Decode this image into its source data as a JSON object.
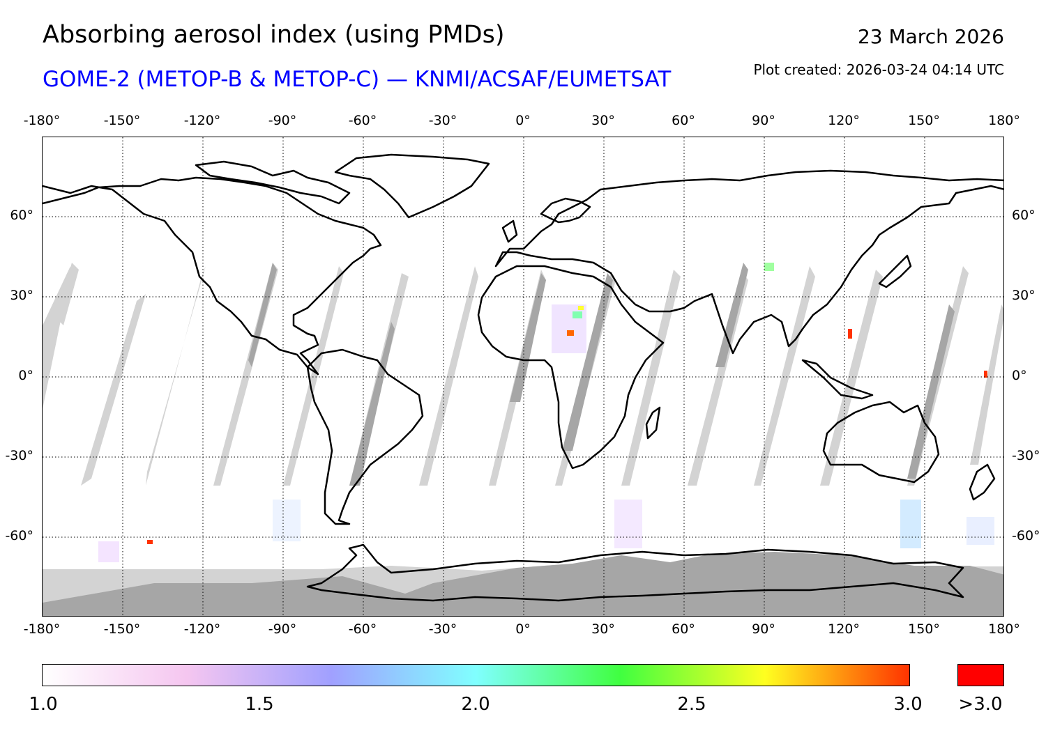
{
  "header": {
    "title": "Absorbing aerosol index (using PMDs)",
    "subtitle": "GOME-2 (METOP-B & METOP-C) — KNMI/ACSAF/EUMETSAT",
    "date": "23 March 2026",
    "plot_created": "Plot created: 2026-03-24 04:14 UTC"
  },
  "map": {
    "lon_labels": [
      "-180°",
      "-150°",
      "-120°",
      "-90°",
      "-60°",
      "-30°",
      "0°",
      "30°",
      "60°",
      "90°",
      "120°",
      "150°",
      "180°"
    ],
    "lat_labels": [
      "60°",
      "30°",
      "0°",
      "-30°",
      "-60°"
    ],
    "lon_range": [
      -180,
      180
    ],
    "lat_range": [
      -90,
      90
    ],
    "colors": {
      "no_data_light": "#d3d3d3",
      "no_data_dark": "#a6a6a6",
      "coastline": "#000000",
      "grid": "#000000"
    }
  },
  "colorbar": {
    "tick_labels": [
      "1.0",
      "1.5",
      "2.0",
      "2.5",
      "3.0"
    ],
    "over_label": ">3.0",
    "range": [
      1.0,
      3.0
    ],
    "colors": [
      "#ffffff",
      "#f5c6f0",
      "#a0a0ff",
      "#80ffff",
      "#40ff40",
      "#ffff20",
      "#ff3300"
    ],
    "over_color": "#ff0000"
  }
}
